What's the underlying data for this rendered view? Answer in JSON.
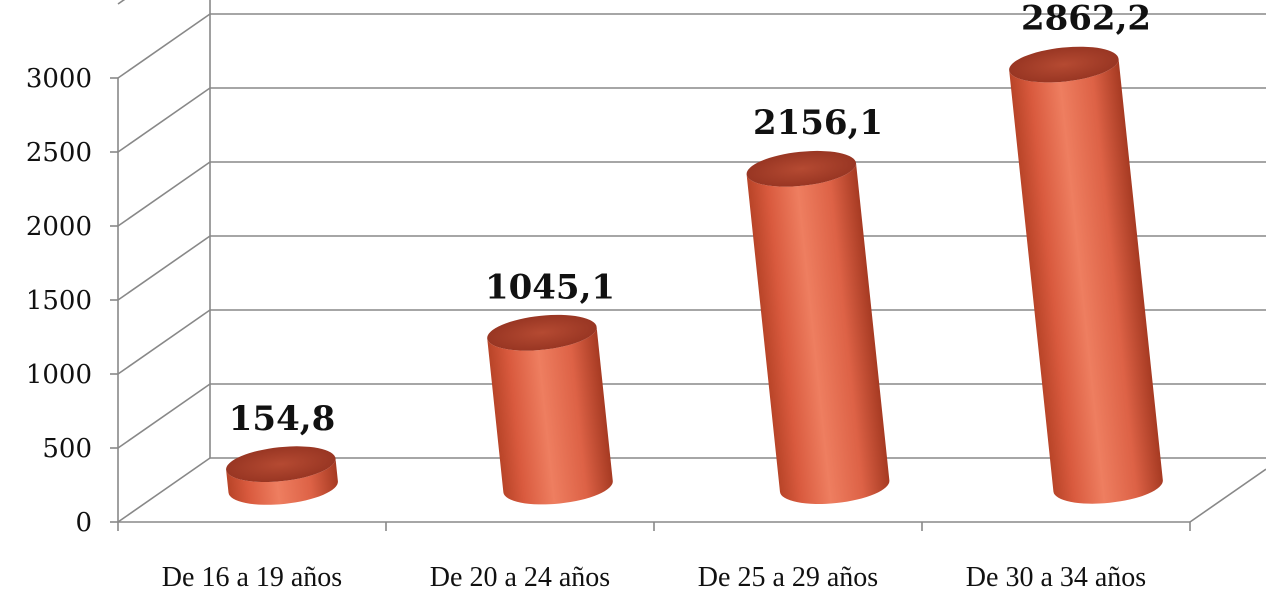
{
  "chart_data": {
    "type": "bar",
    "style": "3d-cylinder",
    "categories": [
      "De 16 a 19 años",
      "De 20 a 24 años",
      "De 25 a 29 años",
      "De 30 a 34 años"
    ],
    "values": [
      154.8,
      1045.1,
      2156.1,
      2862.2
    ],
    "data_labels": [
      "154,8",
      "1045,1",
      "2156,1",
      "2862,2"
    ],
    "yticks": [
      "0",
      "500",
      "1000",
      "1500",
      "2000",
      "2500",
      "3000"
    ],
    "ylim": [
      0,
      3000
    ],
    "grid": true,
    "legend": "none",
    "colors": {
      "bar_body": "#e0664a",
      "bar_light": "#ef8a6c",
      "bar_shadow": "#b23e24",
      "bar_top": "#a8402a",
      "grid": "#888888"
    }
  }
}
